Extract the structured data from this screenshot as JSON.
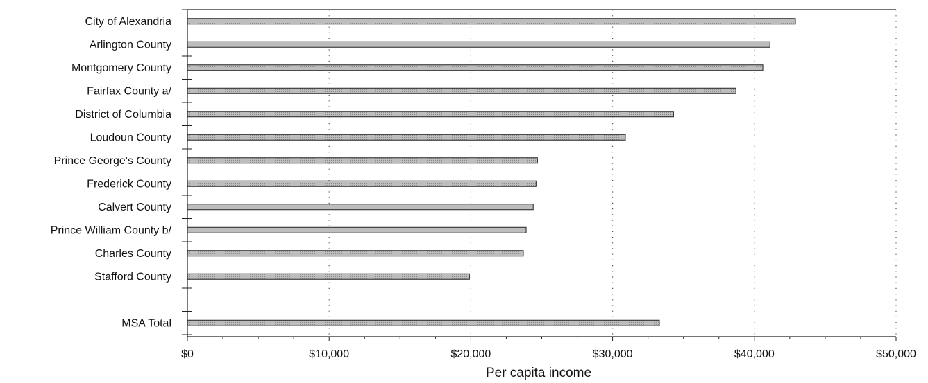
{
  "chart_data": {
    "type": "bar",
    "orientation": "horizontal",
    "categories": [
      "City of Alexandria",
      "Arlington County",
      "Montgomery County",
      "Fairfax County   a/",
      "District of Columbia",
      "Loudoun County",
      "Prince George's County",
      "Frederick County",
      "Calvert County",
      "Prince William County   b/",
      "Charles County",
      "Stafford County",
      "",
      "MSA Total"
    ],
    "values": [
      42900,
      41100,
      40600,
      38700,
      34300,
      30900,
      24700,
      24600,
      24400,
      23900,
      23700,
      19900,
      null,
      33300
    ],
    "xlabel": "Per capita income",
    "ylabel": "",
    "title": "",
    "xlim": [
      0,
      50000
    ],
    "x_ticks": [
      0,
      10000,
      20000,
      30000,
      40000,
      50000
    ],
    "x_tick_labels": [
      "$0",
      "$10,000",
      "$20,000",
      "$30,000",
      "$40,000",
      "$50,000"
    ],
    "grid": "vertical dotted",
    "bar_color": "#b4b4b4",
    "bar_edge_color": "#222222"
  }
}
